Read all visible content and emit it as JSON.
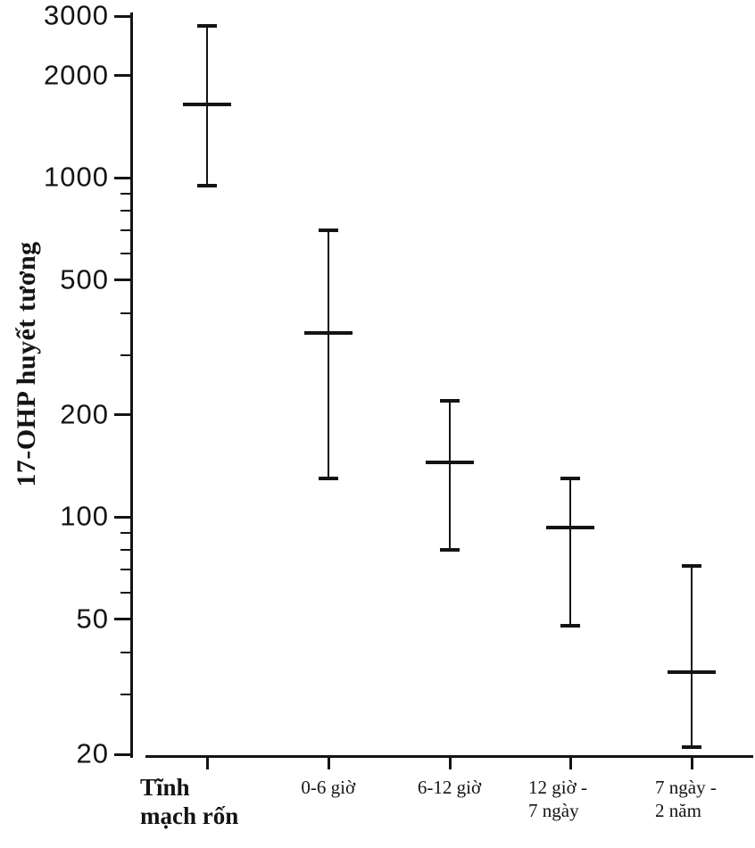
{
  "figure": {
    "background": "#ffffff",
    "ink_color": "#141414"
  },
  "chart_data": {
    "type": "scatter",
    "subtype": "point-with-range-errorbars",
    "title": "",
    "xlabel": "",
    "ylabel": "17-OHP huyết tương",
    "y_scale": "log",
    "ylim": [
      20,
      3000
    ],
    "grid": false,
    "legend": null,
    "y_major_ticks": [
      3000,
      2000,
      1000,
      500,
      200,
      100,
      50,
      20
    ],
    "y_minor_ticks": [
      900,
      800,
      700,
      600,
      400,
      300,
      90,
      80,
      70,
      60,
      40,
      30
    ],
    "categories": [
      "Tĩnh mạch rốn",
      "0-6 giờ",
      "6-12 giờ",
      "12 giờ - 7 ngày",
      "7 ngày - 2 năm"
    ],
    "x_tick_labels": [
      {
        "lines": [
          "Tĩnh",
          "mạch rốn"
        ],
        "emphasis": true
      },
      {
        "lines": [
          "0-6 giờ"
        ],
        "emphasis": false
      },
      {
        "lines": [
          "6-12 giờ"
        ],
        "emphasis": false
      },
      {
        "lines": [
          "12 giờ -",
          "7 ngày"
        ],
        "emphasis": false
      },
      {
        "lines": [
          "7 ngày -",
          "2 năm"
        ],
        "emphasis": false
      }
    ],
    "series": [
      {
        "name": "17-OHP huyết tương",
        "points": [
          {
            "category": "Tĩnh mạch rốn",
            "mean": 1650,
            "low": 950,
            "high": 2800
          },
          {
            "category": "0-6 giờ",
            "mean": 350,
            "low": 130,
            "high": 700
          },
          {
            "category": "6-12 giờ",
            "mean": 145,
            "low": 80,
            "high": 220
          },
          {
            "category": "12 giờ - 7 ngày",
            "mean": 93,
            "low": 48,
            "high": 130
          },
          {
            "category": "7 ngày - 2 năm",
            "mean": 35,
            "low": 21,
            "high": 72
          }
        ]
      }
    ]
  }
}
